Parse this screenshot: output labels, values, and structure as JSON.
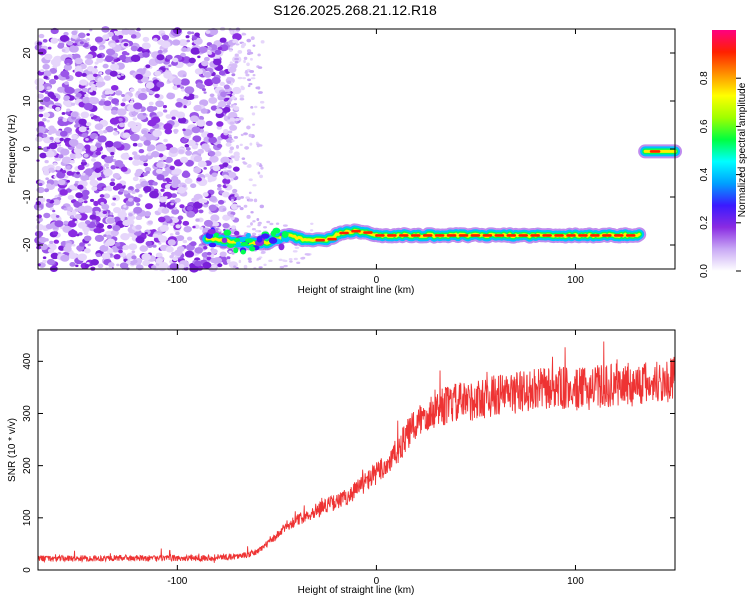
{
  "title": "S126.2025.268.21.12.R18",
  "chart_data": [
    {
      "type": "heatmap",
      "xlabel": "Height of straight line (km)",
      "ylabel": "Frequency (Hz)",
      "xlim": [
        -170,
        150
      ],
      "ylim": [
        -25,
        25
      ],
      "xticks": [
        -100,
        0,
        100
      ],
      "yticks": [
        -20,
        -10,
        0,
        10,
        20
      ],
      "colorbar": {
        "label": "Normalized spectral amplitude",
        "range": [
          0,
          1
        ],
        "ticks": [
          0.0,
          0.2,
          0.4,
          0.6,
          0.8
        ],
        "tick_labels": [
          "0.0",
          "0.2",
          "0.4",
          "0.6",
          "0.8"
        ],
        "colors": [
          "#ffffff",
          "#c9a9f5",
          "#8a2be2",
          "#3a1aff",
          "#00a0ff",
          "#00ffff",
          "#00ff40",
          "#a0ff00",
          "#ffff00",
          "#ff9000",
          "#ff2000",
          "#ff0080"
        ]
      },
      "ridge": [
        {
          "x": -85,
          "y": -18.5
        },
        {
          "x": -70,
          "y": -19.5
        },
        {
          "x": -55,
          "y": -19.5
        },
        {
          "x": -45,
          "y": -18.0
        },
        {
          "x": -35,
          "y": -19.0
        },
        {
          "x": -25,
          "y": -19.0
        },
        {
          "x": -18,
          "y": -17.5
        },
        {
          "x": -10,
          "y": -17.0
        },
        {
          "x": 0,
          "y": -18.0
        },
        {
          "x": 30,
          "y": -18.0
        },
        {
          "x": 60,
          "y": -18.0
        },
        {
          "x": 90,
          "y": -18.0
        },
        {
          "x": 120,
          "y": -18.0
        },
        {
          "x": 132,
          "y": -18.0
        }
      ],
      "secondary_ridge": {
        "x_range": [
          135,
          150
        ],
        "y": -0.5
      }
    },
    {
      "type": "line",
      "xlabel": "Height of straight line (km)",
      "ylabel": "SNR (10 * v/v)",
      "xlim": [
        -170,
        150
      ],
      "ylim": [
        0,
        460
      ],
      "xticks": [
        -100,
        0,
        100
      ],
      "yticks": [
        0,
        100,
        200,
        300,
        400
      ],
      "color": "#ee3333",
      "series": [
        {
          "x": [
            -170,
            -150,
            -130,
            -110,
            -90,
            -75,
            -65,
            -60,
            -55,
            -50,
            -45,
            -40,
            -35,
            -30,
            -25,
            -20,
            -15,
            -10,
            -5,
            0,
            5,
            10,
            15,
            20,
            25,
            30,
            40,
            50,
            60,
            70,
            80,
            90,
            100,
            110,
            120,
            130,
            140,
            150
          ],
          "values": [
            22,
            22,
            23,
            22,
            23,
            25,
            28,
            35,
            50,
            65,
            85,
            95,
            105,
            115,
            125,
            130,
            140,
            155,
            170,
            185,
            200,
            225,
            255,
            280,
            300,
            310,
            320,
            325,
            335,
            340,
            345,
            350,
            345,
            350,
            355,
            355,
            360,
            365
          ]
        }
      ]
    }
  ]
}
